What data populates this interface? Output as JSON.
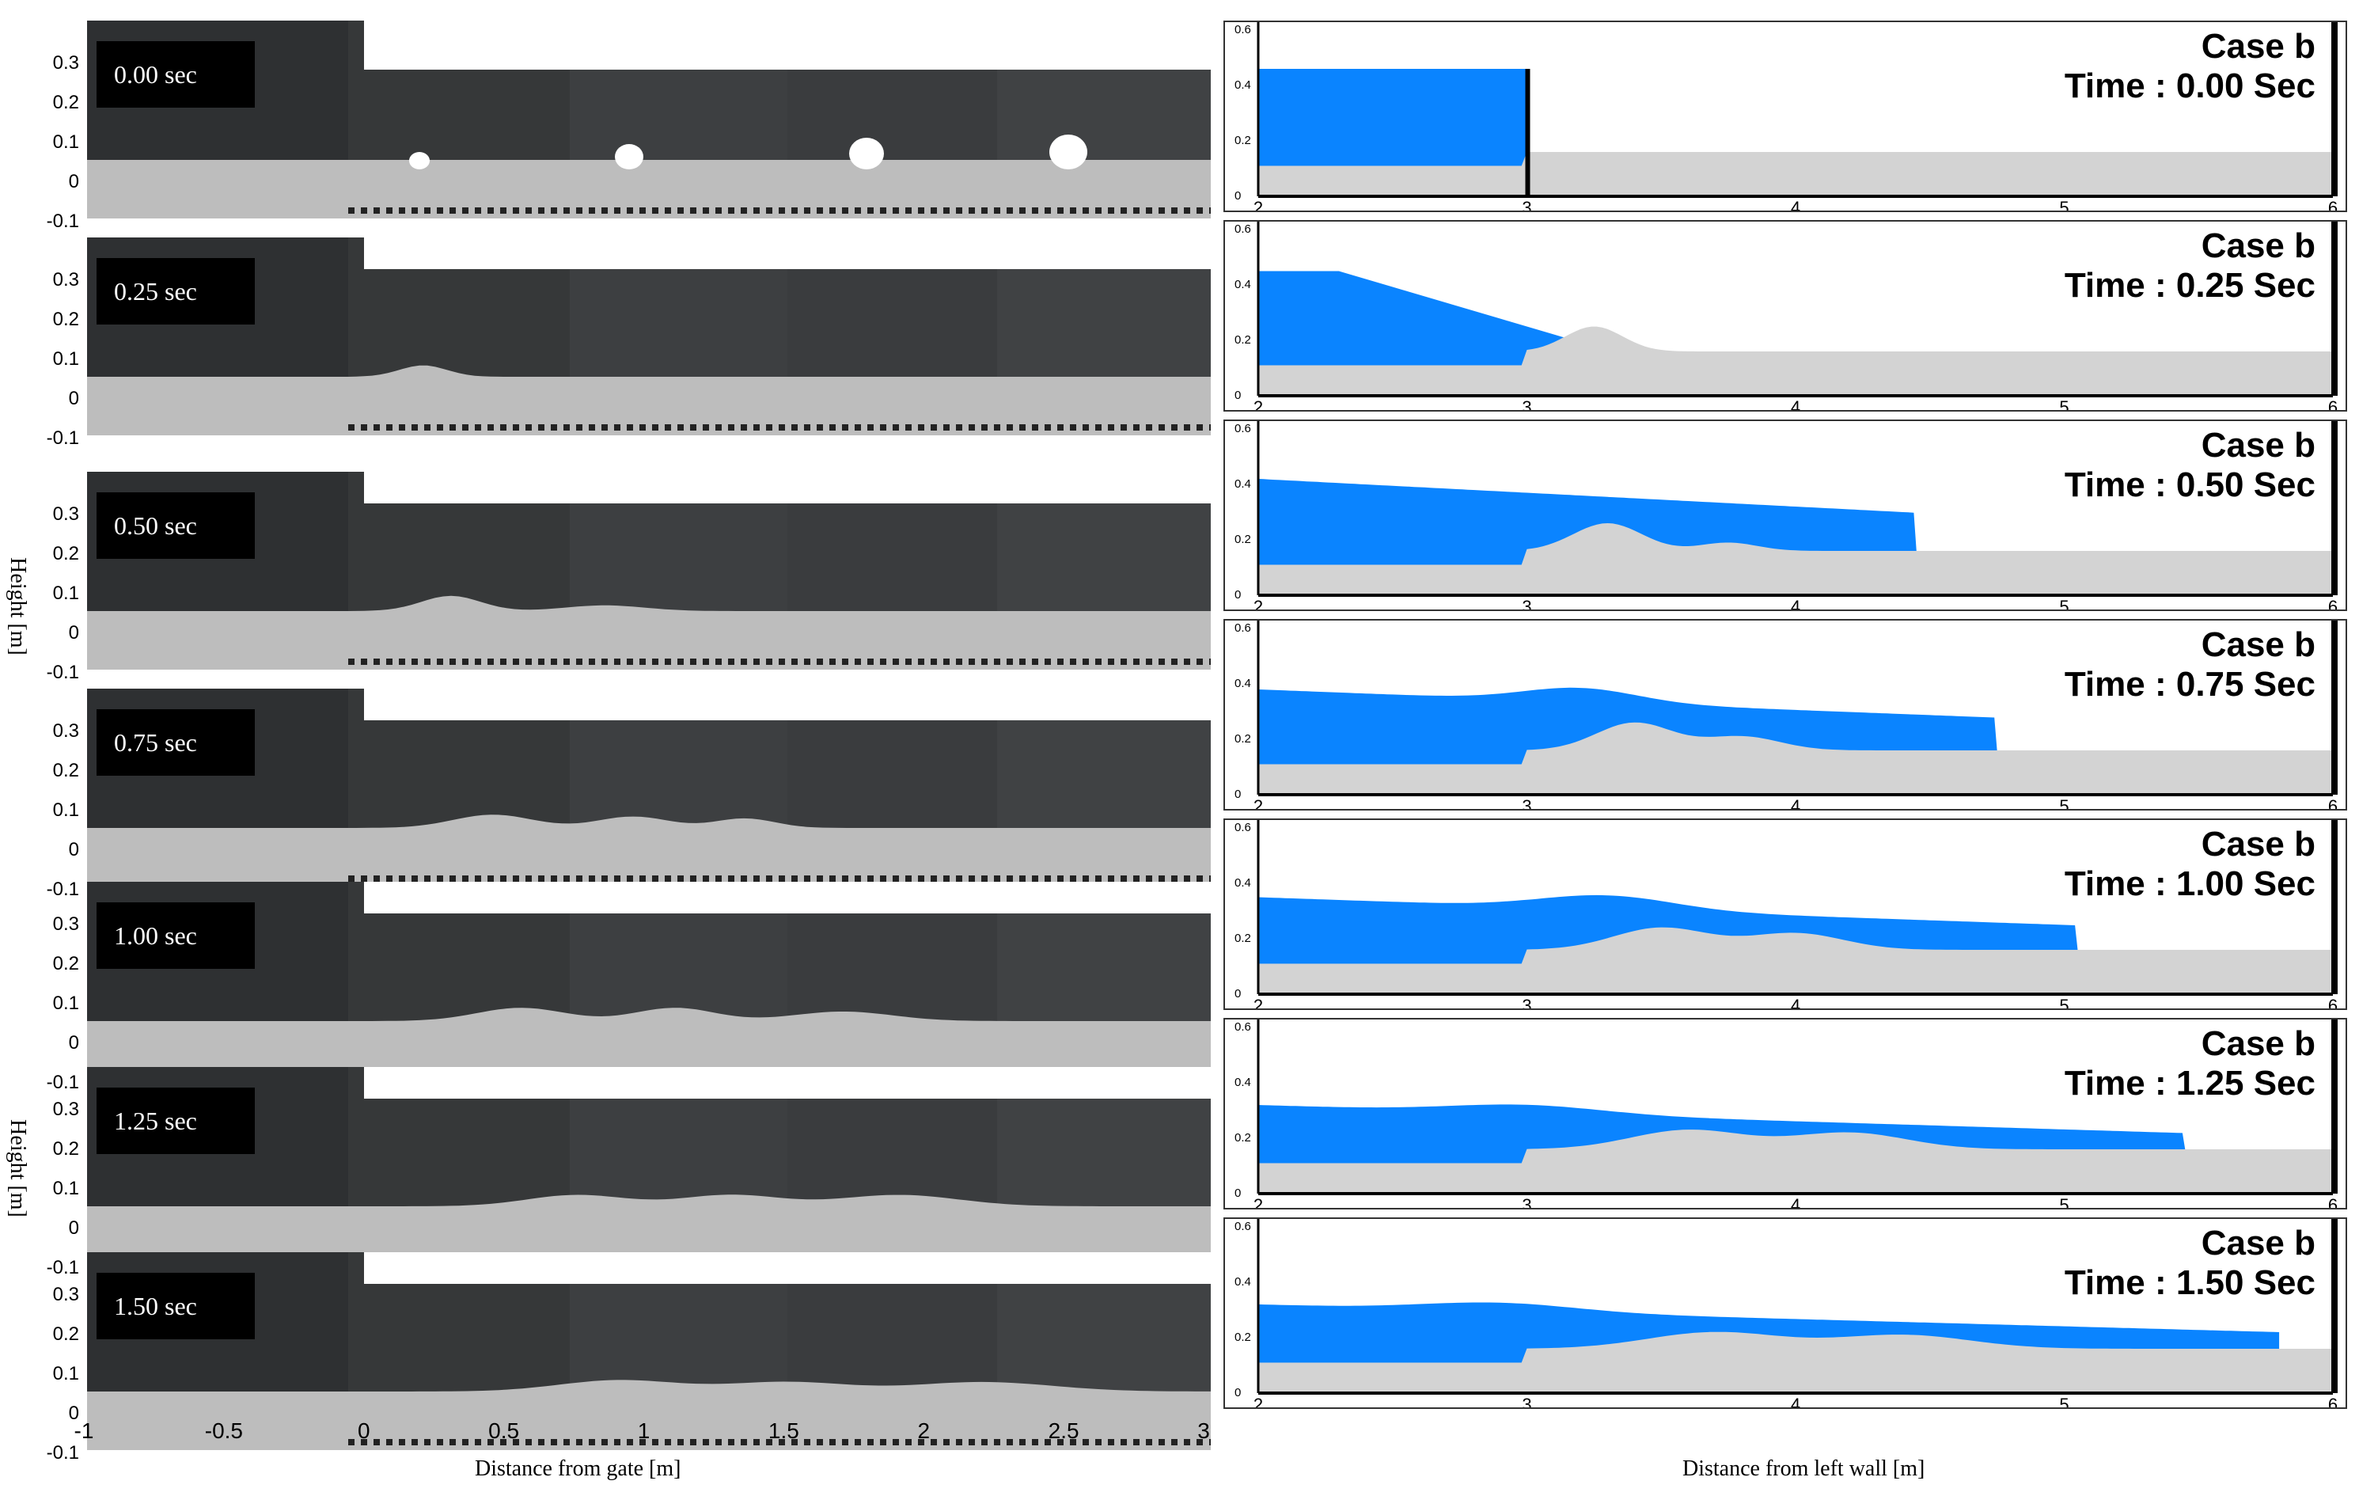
{
  "experiment": {
    "y_axis_label": "Height [m]",
    "x_axis_label": "Distance from gate [m]",
    "y_ticks": [
      "0.3",
      "0.2",
      "0.1",
      "0",
      "-0.1"
    ],
    "x_ticks": [
      "-1",
      "-0.5",
      "0",
      "0.5",
      "1",
      "1.5",
      "2",
      "2.5",
      "3"
    ],
    "panels": [
      {
        "time": "0.00 sec"
      },
      {
        "time": "0.25 sec"
      },
      {
        "time": "0.50 sec"
      },
      {
        "time": "0.75 sec"
      },
      {
        "time": "1.00 sec"
      },
      {
        "time": "1.25 sec"
      },
      {
        "time": "1.50 sec"
      }
    ]
  },
  "simulation": {
    "x_axis_label": "Distance from left wall [m]",
    "x_ticks": [
      "2",
      "3",
      "4",
      "5",
      "6"
    ],
    "y_ticks": [
      "0.6",
      "0.4",
      "0.2",
      "0"
    ],
    "panels": [
      {
        "case": "Case b",
        "time": "Time : 0.00 Sec",
        "front_x": 3.0
      },
      {
        "case": "Case b",
        "time": "Time : 0.25 Sec",
        "front_x": 3.5
      },
      {
        "case": "Case b",
        "time": "Time : 0.50 Sec",
        "front_x": 4.45
      },
      {
        "case": "Case b",
        "time": "Time : 0.75 Sec",
        "front_x": 4.75
      },
      {
        "case": "Case b",
        "time": "Time : 1.00 Sec",
        "front_x": 5.05
      },
      {
        "case": "Case b",
        "time": "Time : 1.25 Sec",
        "front_x": 5.45
      },
      {
        "case": "Case b",
        "time": "Time : 1.50 Sec",
        "front_x": 5.8
      }
    ],
    "colors": {
      "water": "#0a84ff",
      "sediment": "#d3d3d3",
      "wall": "#000000"
    }
  }
}
